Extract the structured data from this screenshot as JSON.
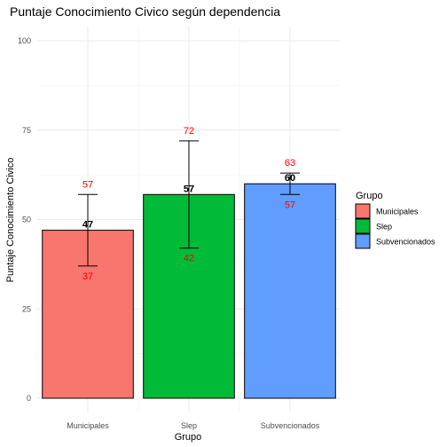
{
  "chart_data": {
    "type": "bar",
    "title": "Puntaje Conocimiento Civico según dependencia",
    "xlabel": "Grupo",
    "ylabel": "Puntaje Conocimiento Civico",
    "ylim": [
      0,
      100
    ],
    "yticks": [
      "0",
      "25",
      "50",
      "75",
      "100"
    ],
    "grid": true,
    "legend": {
      "title": "Grupo",
      "position": "right"
    },
    "categories": [
      "Municipales",
      "Slep",
      "Subvencionados"
    ],
    "values": [
      47,
      57,
      60
    ],
    "lower": [
      37,
      42,
      57
    ],
    "upper": [
      57,
      72,
      63
    ],
    "value_labels": [
      "47",
      "57",
      "60"
    ],
    "lower_labels": [
      "37",
      "42",
      "57"
    ],
    "upper_labels": [
      "57",
      "72",
      "63"
    ],
    "colors": [
      "#F8766D",
      "#00BA38",
      "#619CFF"
    ],
    "label_color": "#FF0000"
  }
}
